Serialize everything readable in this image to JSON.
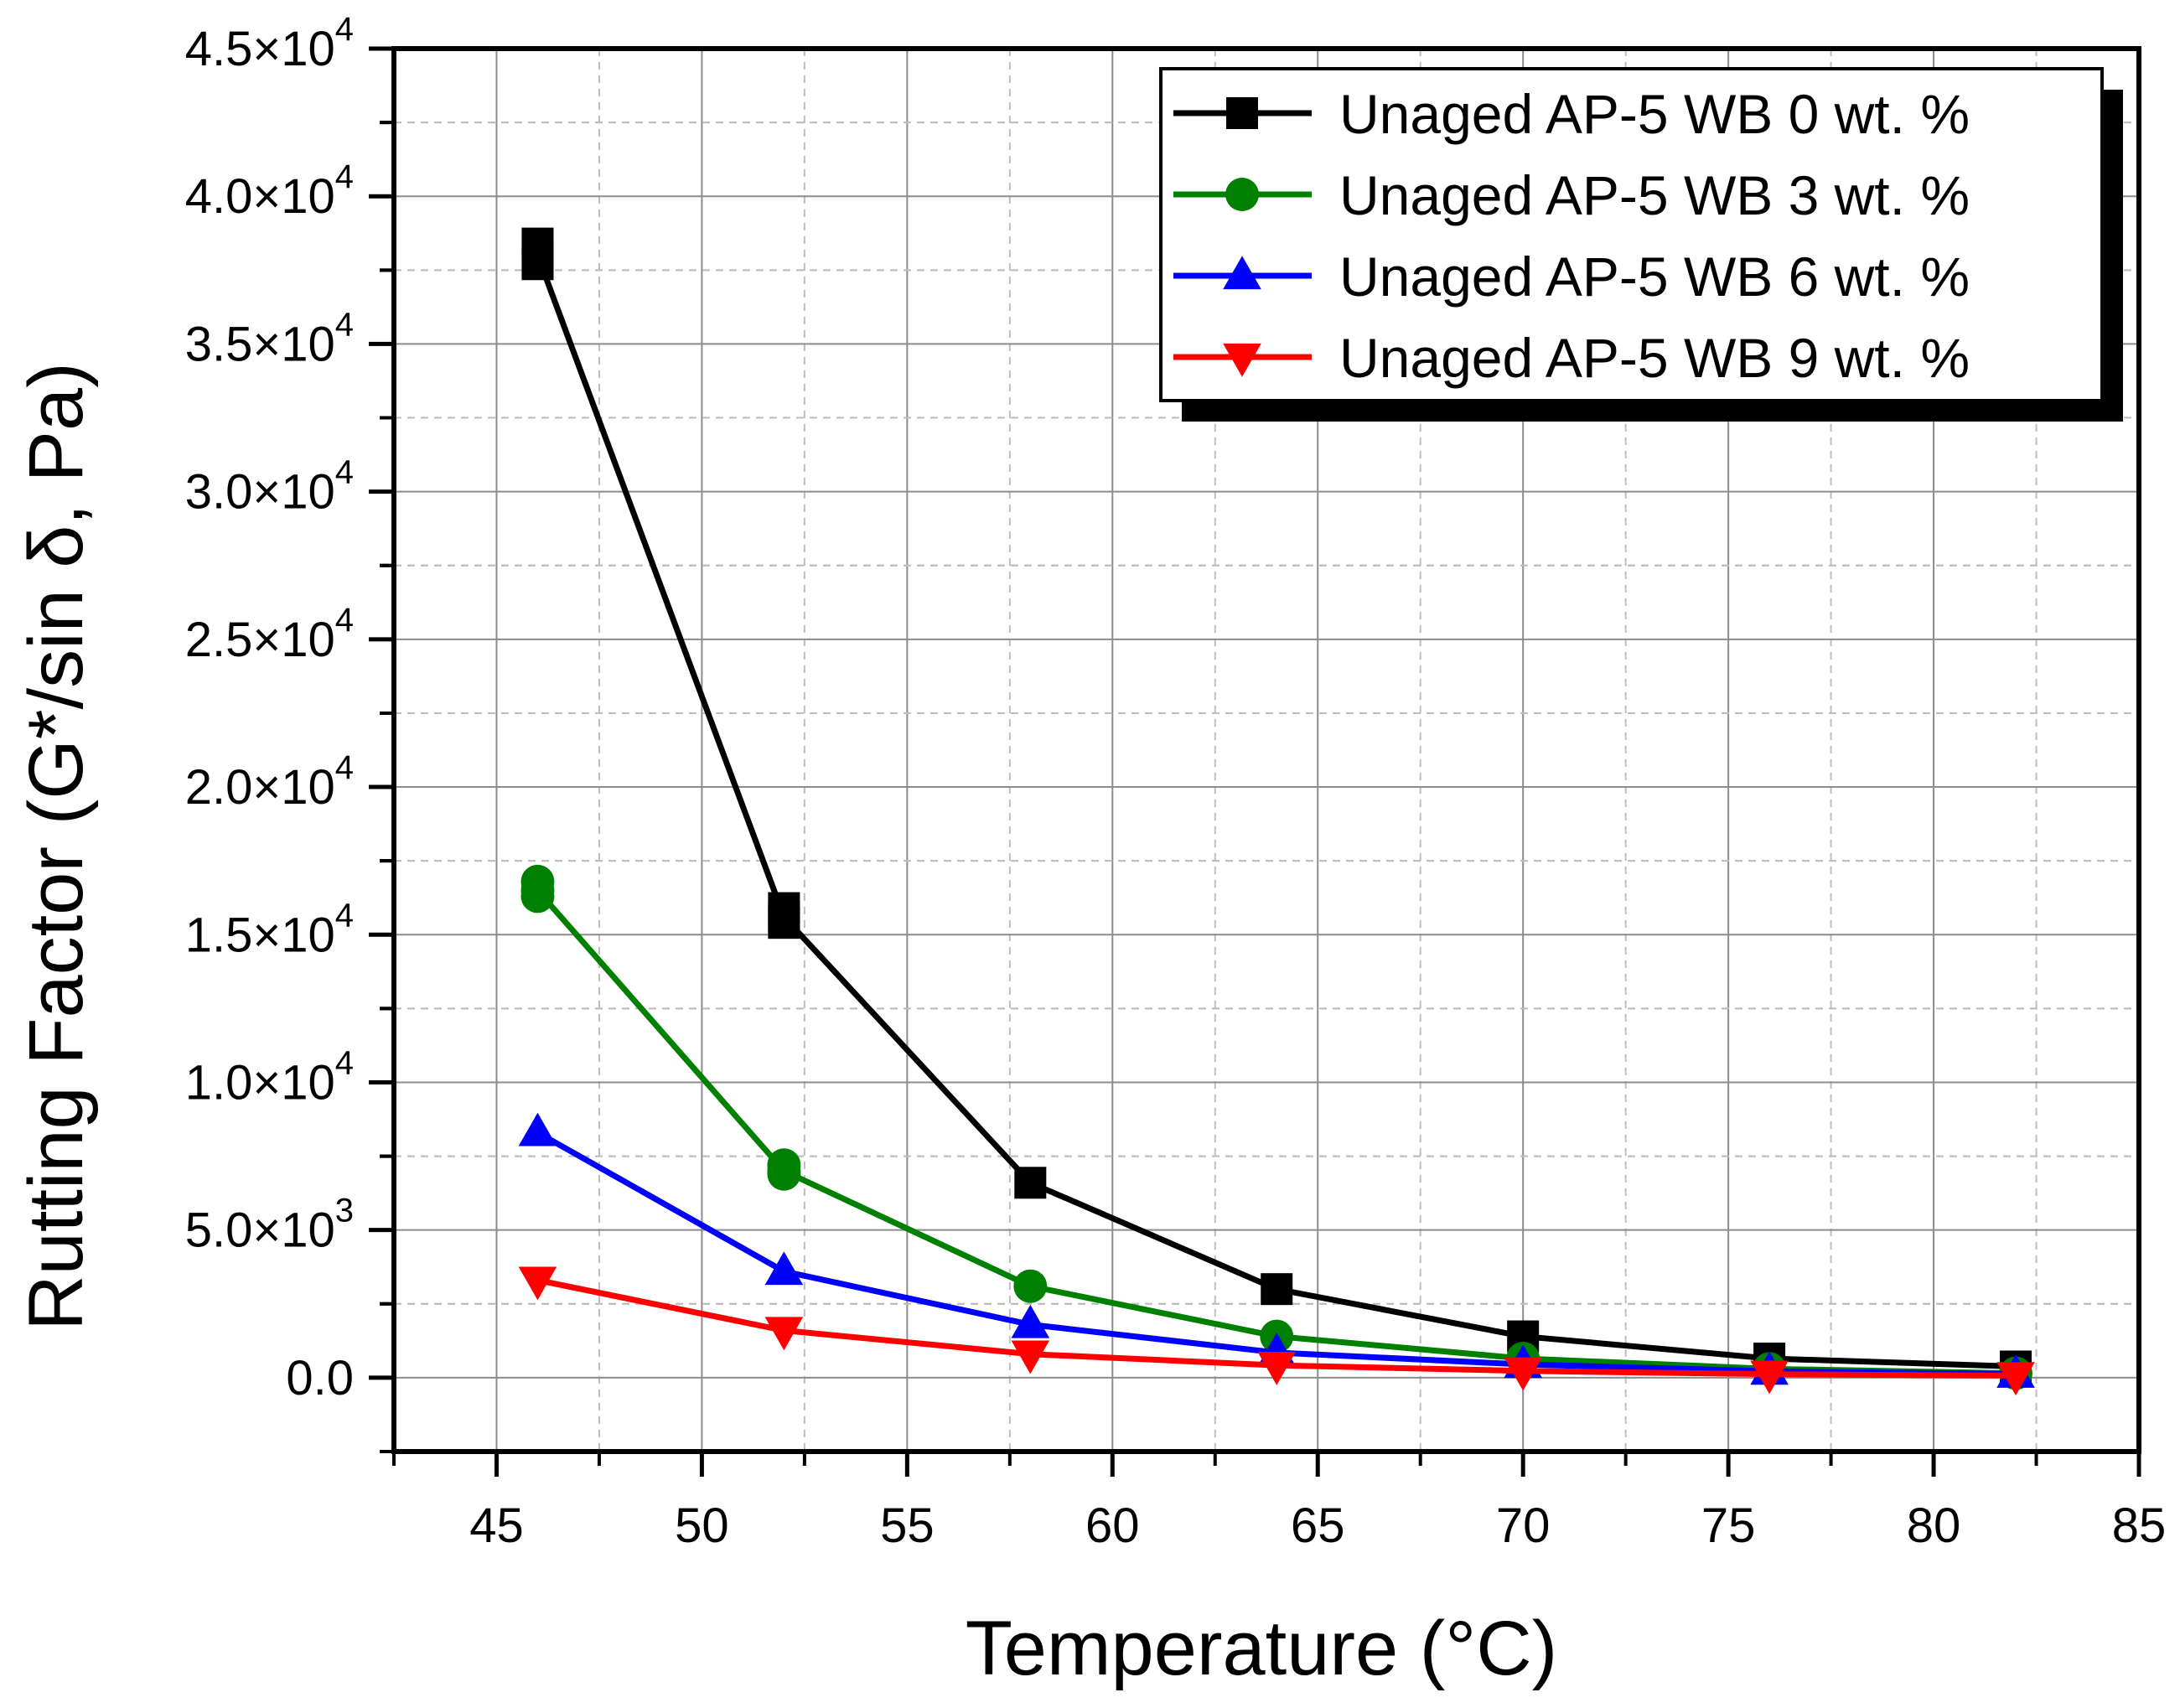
{
  "chart_data": {
    "type": "line",
    "title": "",
    "xlabel": "Temperature (°C)",
    "ylabel": "Rutting Factor (G*/sin δ, Pa)",
    "xlim": [
      42.5,
      85
    ],
    "ylim": [
      -2500,
      45000
    ],
    "x_ticks": [
      45,
      50,
      55,
      60,
      65,
      70,
      75,
      80,
      85
    ],
    "y_ticks": [
      {
        "value": 0,
        "mantissa": "0.0",
        "exp": ""
      },
      {
        "value": 5000,
        "mantissa": "5.0×10",
        "exp": "3"
      },
      {
        "value": 10000,
        "mantissa": "1.0×10",
        "exp": "4"
      },
      {
        "value": 15000,
        "mantissa": "1.5×10",
        "exp": "4"
      },
      {
        "value": 20000,
        "mantissa": "2.0×10",
        "exp": "4"
      },
      {
        "value": 25000,
        "mantissa": "2.5×10",
        "exp": "4"
      },
      {
        "value": 30000,
        "mantissa": "3.0×10",
        "exp": "4"
      },
      {
        "value": 35000,
        "mantissa": "3.5×10",
        "exp": "4"
      },
      {
        "value": 40000,
        "mantissa": "4.0×10",
        "exp": "4"
      },
      {
        "value": 45000,
        "mantissa": "4.5×10",
        "exp": "4"
      }
    ],
    "grid": true,
    "legend_position": "top-right",
    "x": [
      46,
      52,
      58,
      64,
      70,
      76,
      82
    ],
    "series": [
      {
        "name": "Unaged AP-5 WB 0 wt. %",
        "color": "#000000",
        "marker": "square",
        "values": [
          38000,
          15600,
          6600,
          3000,
          1400,
          650,
          380
        ],
        "replicates": [
          [
            46,
            38400
          ],
          [
            46,
            37700
          ],
          [
            52,
            15900
          ],
          [
            52,
            15400
          ]
        ]
      },
      {
        "name": "Unaged AP-5 WB 3 wt. %",
        "color": "#008000",
        "marker": "circle",
        "values": [
          16500,
          7000,
          3100,
          1400,
          650,
          300,
          150
        ],
        "replicates": [
          [
            46,
            16800
          ],
          [
            46,
            16300
          ],
          [
            52,
            7200
          ],
          [
            52,
            6900
          ]
        ]
      },
      {
        "name": "Unaged AP-5 WB 6 wt. %",
        "color": "#0000ff",
        "marker": "triangle-up",
        "values": [
          8300,
          3600,
          1800,
          850,
          450,
          220,
          120
        ],
        "replicates": []
      },
      {
        "name": "Unaged AP-5 WB 9 wt. %",
        "color": "#ff0000",
        "marker": "triangle-down",
        "values": [
          3300,
          1600,
          800,
          420,
          230,
          120,
          70
        ],
        "replicates": []
      }
    ]
  }
}
